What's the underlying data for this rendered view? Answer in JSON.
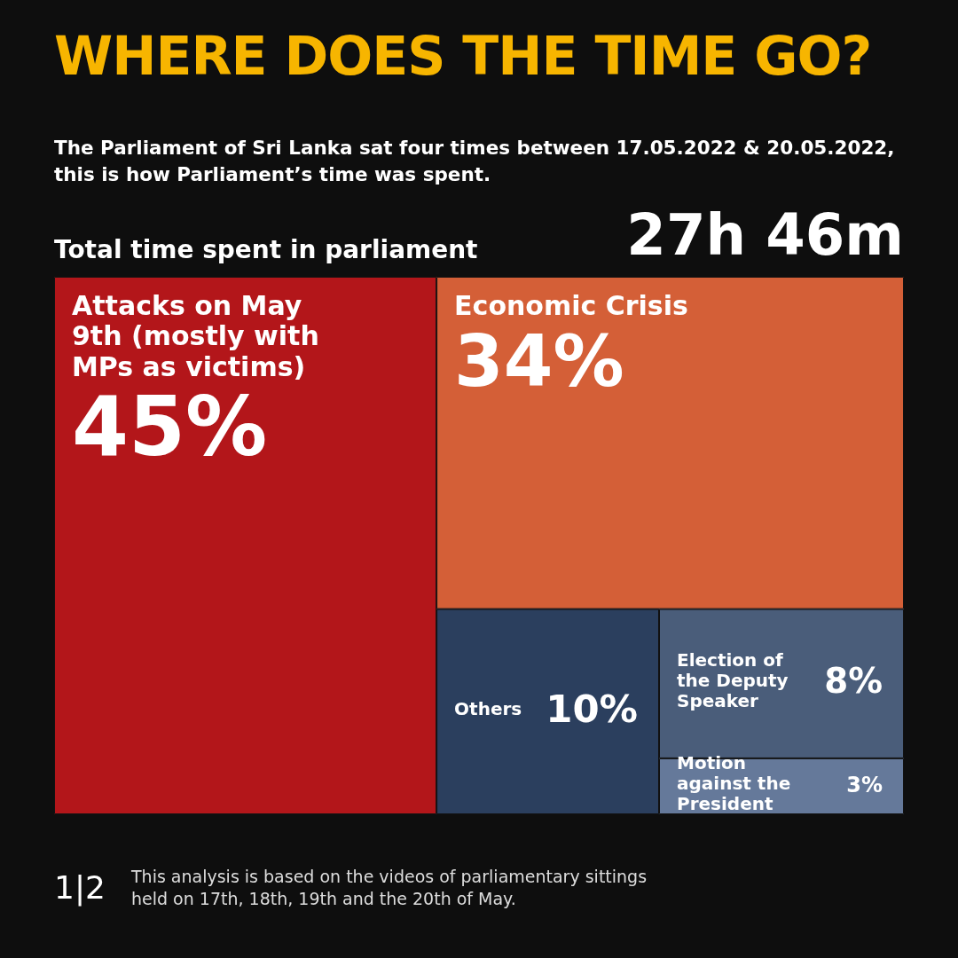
{
  "chart_data": {
    "type": "other",
    "title": "WHERE DOES THE TIME GO?",
    "subtitle": "The Parliament of Sri Lanka sat four times between 17.05.2022 & 20.05.2022, this is how Parliament’s time was spent.",
    "categories": [
      "Attacks on May 9th (mostly with MPs as victims)",
      "Economic Crisis",
      "Others",
      "Election of the Deputy Speaker",
      "Motion against the President"
    ],
    "values": [
      45,
      34,
      10,
      8,
      3
    ],
    "value_labels": [
      "45%",
      "34%",
      "10%",
      "8%",
      "3%"
    ],
    "colors": [
      "#b3161a",
      "#d45f37",
      "#2b3f5e",
      "#4a5d7a",
      "#65799a"
    ],
    "annotations": [
      "Total time spent in parliament",
      "27h 46m",
      "1|2",
      "This analysis is based on the videos of parliamentary sittings held on 17th, 18th, 19th and the 20th of May."
    ]
  }
}
